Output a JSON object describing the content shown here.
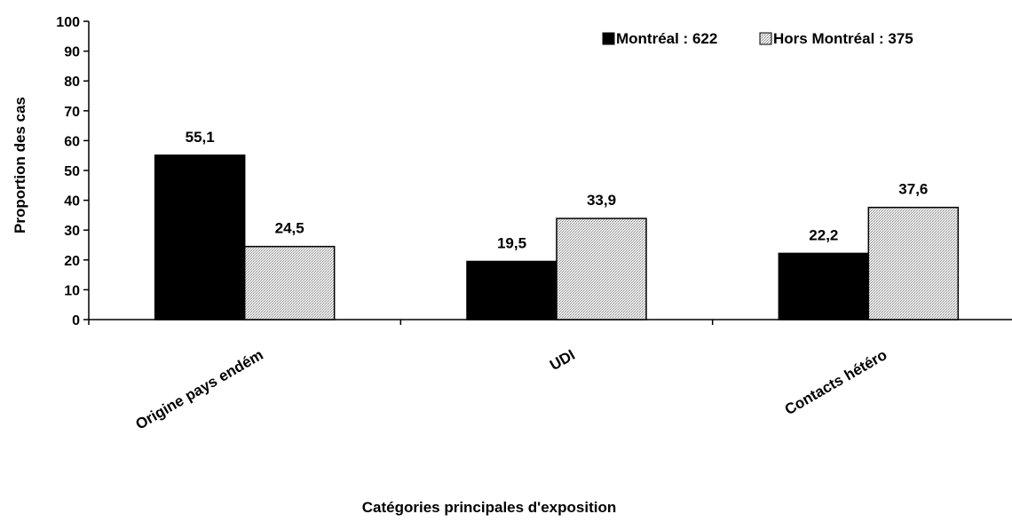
{
  "chart_data": {
    "type": "bar",
    "title": "",
    "xlabel": "Catégories principales d'exposition",
    "ylabel": "Proportion des cas",
    "ylim": [
      0,
      100
    ],
    "yticks": [
      0,
      10,
      20,
      30,
      40,
      50,
      60,
      70,
      80,
      90,
      100
    ],
    "categories": [
      "Origine pays endém",
      "UDI",
      "Contacts hétéro"
    ],
    "series": [
      {
        "name": "Montréal : 622",
        "values": [
          55.1,
          19.5,
          22.2
        ],
        "value_labels": [
          "55,1",
          "19,5",
          "22,2"
        ],
        "color": "#000000",
        "pattern": "solid"
      },
      {
        "name": "Hors Montréal : 375",
        "values": [
          24.5,
          33.9,
          37.6
        ],
        "value_labels": [
          "24,5",
          "33,9",
          "37,6"
        ],
        "color": "#c8c8c8",
        "pattern": "dotted"
      }
    ],
    "grid": false,
    "legend_position": "top-right"
  }
}
